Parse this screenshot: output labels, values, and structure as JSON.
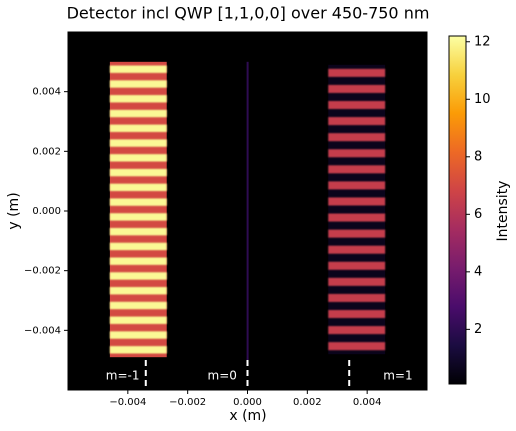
{
  "chart_data": {
    "type": "heatmap",
    "title": "Detector incl QWP [1,1,0,0] over 450-750 nm",
    "xlabel": "x (m)",
    "ylabel": "y (m)",
    "xlim": [
      -0.006,
      0.006
    ],
    "ylim": [
      -0.006,
      0.006
    ],
    "xticks": [
      {
        "value": -0.004,
        "label": "−0.004"
      },
      {
        "value": -0.002,
        "label": "−0.002"
      },
      {
        "value": 0,
        "label": "0.000"
      },
      0.002,
      0.004
    ],
    "yticks": [
      {
        "value": -0.004,
        "label": "−0.004"
      },
      {
        "value": -0.002,
        "label": "−0.002"
      },
      {
        "value": 0,
        "label": "0.000"
      },
      0.002,
      0.004
    ],
    "blocks": [
      {
        "xlim": [
          -0.0046,
          -0.0027
        ],
        "ylim": [
          -0.0049,
          0.005
        ],
        "fringes": 20,
        "base": 7,
        "peak": 12
      },
      {
        "xlim": [
          -3e-05,
          3e-05
        ],
        "ylim": [
          -0.005,
          0.005
        ],
        "fringes": 0,
        "base": 2,
        "peak": 2
      },
      {
        "xlim": [
          0.0027,
          0.0046
        ],
        "ylim": [
          -0.0048,
          0.0049
        ],
        "fringes": 18,
        "base": 0.6,
        "peak": 6.5
      }
    ],
    "annotations": [
      {
        "text": "m=-1",
        "x": -0.0034
      },
      {
        "text": "m=0",
        "x": 0
      },
      {
        "text": "m=1",
        "x": 0.0034
      }
    ],
    "colorbar": {
      "label": "Intensity",
      "clim": [
        0.1,
        12.2
      ],
      "ticks": [
        2,
        4,
        6,
        8,
        10,
        12
      ]
    },
    "colormap": [
      "#000004",
      "#1b0c41",
      "#4a0c6b",
      "#781c6d",
      "#a52c60",
      "#cf4446",
      "#ed6925",
      "#fb9b06",
      "#f7d13d",
      "#fcffa4"
    ],
    "background": "#000000"
  }
}
